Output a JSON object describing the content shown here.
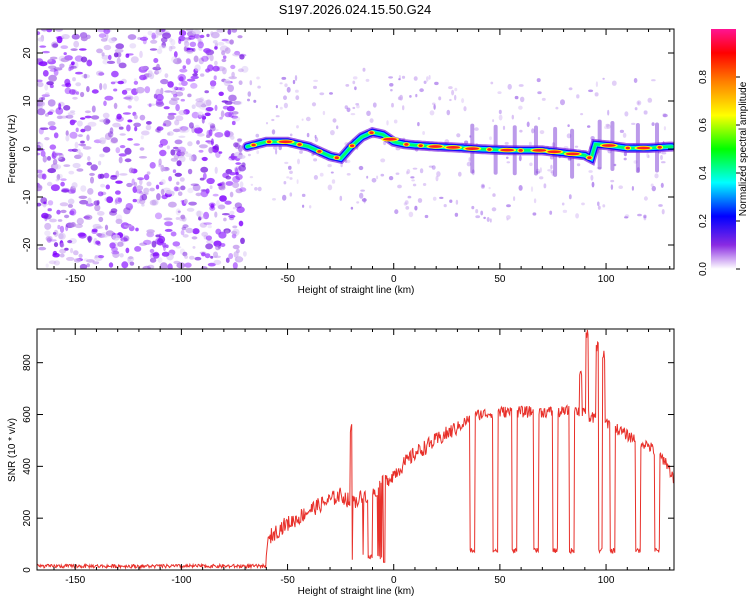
{
  "title": "S197.2026.024.15.50.G24",
  "chart_data": [
    {
      "type": "heatmap",
      "name": "spectrogram",
      "xlabel": "Height of straight line (km)",
      "ylabel": "Frequency (Hz)",
      "xlim": [
        -168,
        132
      ],
      "ylim": [
        -25,
        25
      ],
      "xticks": [
        -150,
        -100,
        -50,
        0,
        50,
        100
      ],
      "yticks": [
        -20,
        -10,
        0,
        10,
        20
      ],
      "noise_region_x": [
        -168,
        -70
      ],
      "ridge": [
        [
          -69,
          0.5
        ],
        [
          -60,
          1.5
        ],
        [
          -50,
          1.5
        ],
        [
          -40,
          0.5
        ],
        [
          -30,
          -1.5
        ],
        [
          -25,
          -2.0
        ],
        [
          -20,
          0.5
        ],
        [
          -15,
          2.5
        ],
        [
          -10,
          3.5
        ],
        [
          -5,
          3.0
        ],
        [
          0,
          1.5
        ],
        [
          5,
          1.0
        ],
        [
          10,
          0.8
        ],
        [
          20,
          0.5
        ],
        [
          30,
          0.3
        ],
        [
          40,
          0.0
        ],
        [
          50,
          -0.2
        ],
        [
          60,
          -0.3
        ],
        [
          70,
          -0.3
        ],
        [
          80,
          -0.8
        ],
        [
          90,
          -1.3
        ],
        [
          93,
          -2.0
        ],
        [
          95,
          1.0
        ],
        [
          100,
          0.8
        ],
        [
          110,
          0.2
        ],
        [
          120,
          0.2
        ],
        [
          130,
          0.5
        ]
      ],
      "colorbar": {
        "label": "Normalized spectral amplitude",
        "range": [
          0,
          1
        ],
        "ticks": [
          "0.0",
          "0.2",
          "0.4",
          "0.6",
          "0.8"
        ],
        "colors": [
          "#ffffff",
          "#8a2be2",
          "#0000ff",
          "#00ffff",
          "#00ff00",
          "#ffff00",
          "#ff8000",
          "#ff0000",
          "#ff1493"
        ]
      }
    },
    {
      "type": "line",
      "name": "snr",
      "xlabel": "Height of straight line (km)",
      "ylabel": "SNR (10 * v/v)",
      "xlim": [
        -168,
        132
      ],
      "ylim": [
        0,
        930
      ],
      "xticks": [
        -150,
        -100,
        -50,
        0,
        50,
        100
      ],
      "yticks": [
        0,
        200,
        400,
        600,
        800
      ],
      "color": "#e8302a",
      "envelope": [
        [
          -168,
          15
        ],
        [
          -70,
          15
        ],
        [
          -62,
          20
        ],
        [
          -58,
          130
        ],
        [
          -52,
          170
        ],
        [
          -45,
          200
        ],
        [
          -40,
          230
        ],
        [
          -35,
          250
        ],
        [
          -30,
          270
        ],
        [
          -25,
          290
        ],
        [
          -20,
          260
        ],
        [
          -10,
          300
        ],
        [
          0,
          370
        ],
        [
          5,
          410
        ],
        [
          10,
          450
        ],
        [
          20,
          500
        ],
        [
          30,
          550
        ],
        [
          35,
          580
        ],
        [
          40,
          600
        ],
        [
          50,
          610
        ],
        [
          60,
          610
        ],
        [
          70,
          610
        ],
        [
          80,
          610
        ],
        [
          85,
          620
        ],
        [
          90,
          600
        ],
        [
          100,
          570
        ],
        [
          110,
          520
        ],
        [
          120,
          480
        ],
        [
          128,
          420
        ],
        [
          132,
          350
        ]
      ],
      "dips": [
        37,
        48,
        57,
        67,
        76,
        84,
        97,
        103,
        115,
        124
      ],
      "spikes": [
        [
          -20,
          570
        ],
        [
          88,
          780
        ],
        [
          91,
          930
        ],
        [
          96,
          880
        ],
        [
          99,
          850
        ]
      ]
    }
  ]
}
